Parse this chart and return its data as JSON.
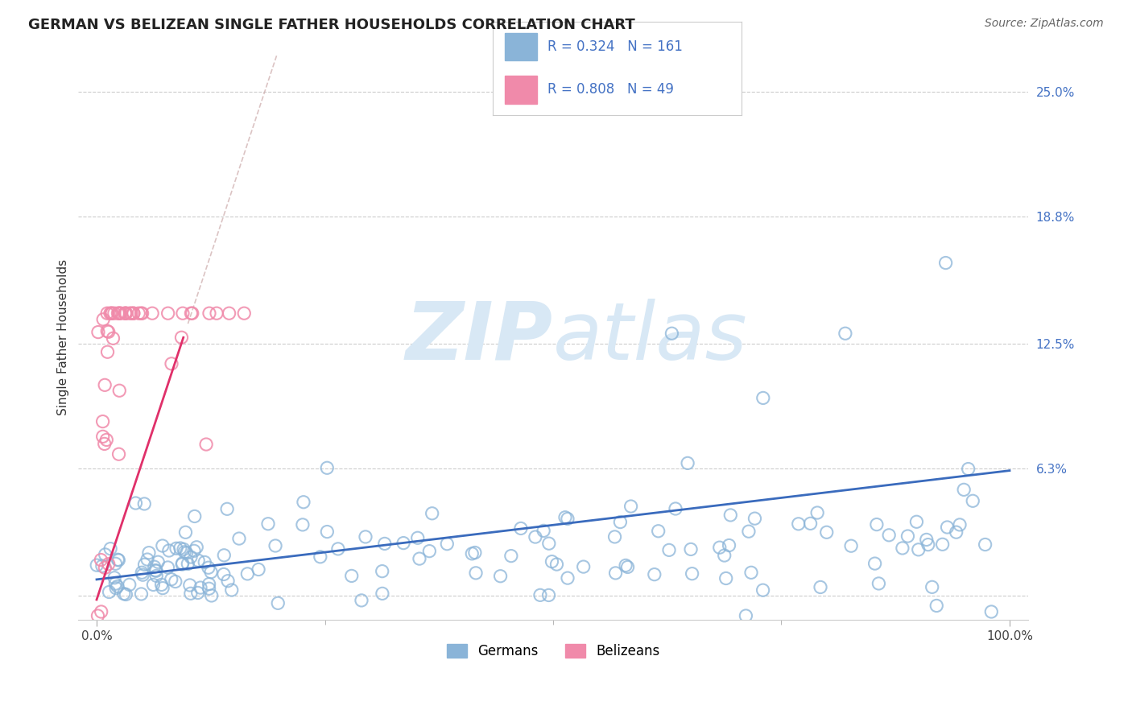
{
  "title": "GERMAN VS BELIZEAN SINGLE FATHER HOUSEHOLDS CORRELATION CHART",
  "source": "Source: ZipAtlas.com",
  "ylabel": "Single Father Households",
  "xlim": [
    -0.02,
    1.02
  ],
  "ylim": [
    -0.012,
    0.268
  ],
  "ytick_vals": [
    0.0,
    0.063,
    0.125,
    0.188,
    0.25
  ],
  "ytick_labels": [
    "",
    "6.3%",
    "12.5%",
    "18.8%",
    "25.0%"
  ],
  "german_R": 0.324,
  "german_N": 161,
  "belizean_R": 0.808,
  "belizean_N": 49,
  "german_color": "#8ab4d8",
  "belizean_color": "#f08aaa",
  "trend_german_color": "#3a6bbd",
  "trend_belizean_color": "#e0306a",
  "ref_line_color": "#ccaaaa",
  "watermark_color": "#d8e8f5",
  "background_color": "#ffffff",
  "title_fontsize": 13,
  "axis_label_fontsize": 11,
  "tick_fontsize": 11,
  "legend_fontsize": 13,
  "source_fontsize": 10
}
